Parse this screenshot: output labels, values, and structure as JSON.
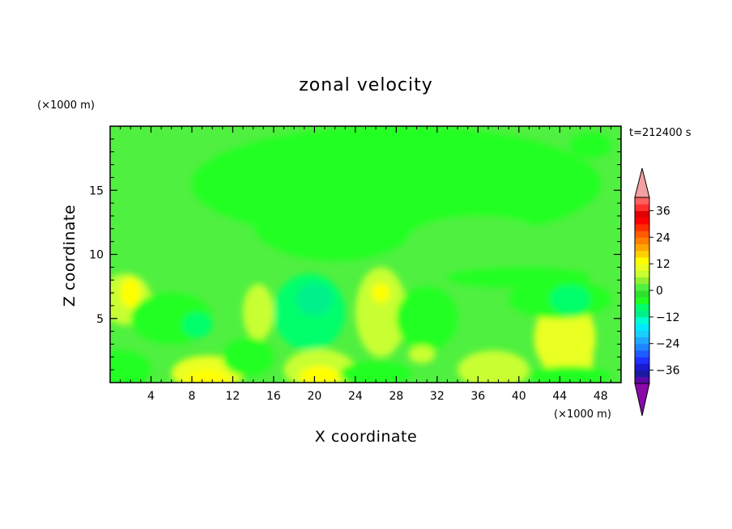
{
  "chart_data": {
    "type": "heatmap",
    "title": "zonal velocity",
    "xlabel": "X coordinate",
    "ylabel": "Z coordinate",
    "x_unit": "(×1000 m)",
    "y_unit": "(×1000 m)",
    "time_label": "t=212400 s",
    "xlim": [
      0,
      50
    ],
    "ylim": [
      0,
      20
    ],
    "x_ticks": [
      4,
      8,
      12,
      16,
      20,
      24,
      28,
      32,
      36,
      40,
      44,
      48
    ],
    "y_ticks": [
      5,
      10,
      15
    ],
    "colorbar": {
      "levels": [
        -42,
        -39,
        -36,
        -33,
        -30,
        -27,
        -24,
        -21,
        -18,
        -15,
        -12,
        -9,
        -6,
        -3,
        0,
        3,
        6,
        9,
        12,
        15,
        18,
        21,
        24,
        27,
        30,
        33,
        36,
        39,
        42
      ],
      "colors": [
        "#5b0aa8",
        "#1a1aa0",
        "#1a1ad0",
        "#2030ff",
        "#1f5cff",
        "#1f85ff",
        "#1fa8ff",
        "#19cfff",
        "#00eaff",
        "#00ffd0",
        "#00f08c",
        "#00ff6a",
        "#20ff20",
        "#2ee02e",
        "#50f040",
        "#8ff030",
        "#c8ff30",
        "#eaff20",
        "#ffff00",
        "#ffd000",
        "#ffa500",
        "#ff8000",
        "#ff5a00",
        "#ff2c00",
        "#ff0000",
        "#e00000",
        "#ff3030",
        "#ff6060"
      ],
      "under_color": "#8a0aa8",
      "over_color": "#f5a0a0",
      "tick_labels": [
        "36",
        "24",
        "12",
        "0",
        "−12",
        "−24",
        "−36"
      ],
      "tick_values": [
        36,
        24,
        12,
        0,
        -12,
        -24,
        -36
      ]
    },
    "field_background_value": 1,
    "field_blobs": [
      {
        "x": 1.5,
        "z": 6.5,
        "rx": 2.5,
        "rz": 2.0,
        "value": 8
      },
      {
        "x": 2.0,
        "z": 7.0,
        "rx": 1.0,
        "rz": 1.2,
        "value": 12
      },
      {
        "x": 6.0,
        "z": 5.0,
        "rx": 4.0,
        "rz": 2.0,
        "value": -5
      },
      {
        "x": 8.5,
        "z": 4.5,
        "rx": 1.5,
        "rz": 1.0,
        "value": -9
      },
      {
        "x": 1.0,
        "z": 1.0,
        "rx": 3.0,
        "rz": 1.5,
        "value": -5
      },
      {
        "x": 9.5,
        "z": 0.7,
        "rx": 3.5,
        "rz": 1.4,
        "value": 9
      },
      {
        "x": 9.5,
        "z": 0.3,
        "rx": 2.0,
        "rz": 0.7,
        "value": 14
      },
      {
        "x": 14.5,
        "z": 5.5,
        "rx": 1.5,
        "rz": 2.2,
        "value": 7
      },
      {
        "x": 13.5,
        "z": 2.0,
        "rx": 2.5,
        "rz": 1.5,
        "value": -4
      },
      {
        "x": 19.5,
        "z": 5.5,
        "rx": 3.5,
        "rz": 3.0,
        "value": -7
      },
      {
        "x": 20.0,
        "z": 6.5,
        "rx": 1.8,
        "rz": 1.3,
        "value": -12
      },
      {
        "x": 20.5,
        "z": 1.0,
        "rx": 3.5,
        "rz": 1.6,
        "value": 8
      },
      {
        "x": 20.5,
        "z": 0.5,
        "rx": 2.0,
        "rz": 0.8,
        "value": 13
      },
      {
        "x": 26.5,
        "z": 5.5,
        "rx": 2.5,
        "rz": 3.5,
        "value": 8
      },
      {
        "x": 26.5,
        "z": 7.0,
        "rx": 0.9,
        "rz": 0.8,
        "value": 13
      },
      {
        "x": 26.0,
        "z": 0.7,
        "rx": 3.5,
        "rz": 1.0,
        "value": -5
      },
      {
        "x": 31.0,
        "z": 5.0,
        "rx": 3.0,
        "rz": 2.5,
        "value": -4
      },
      {
        "x": 30.5,
        "z": 2.2,
        "rx": 1.3,
        "rz": 0.7,
        "value": 8
      },
      {
        "x": 37.5,
        "z": 1.0,
        "rx": 3.5,
        "rz": 1.5,
        "value": 7
      },
      {
        "x": 44.5,
        "z": 3.5,
        "rx": 3.0,
        "rz": 3.0,
        "value": 9
      },
      {
        "x": 45.5,
        "z": 2.0,
        "rx": 1.8,
        "rz": 1.6,
        "value": 11
      },
      {
        "x": 44.0,
        "z": 6.5,
        "rx": 5.0,
        "rz": 1.5,
        "value": -5
      },
      {
        "x": 45.0,
        "z": 6.5,
        "rx": 2.0,
        "rz": 1.2,
        "value": -8
      },
      {
        "x": 45.0,
        "z": 0.5,
        "rx": 4.0,
        "rz": 0.8,
        "value": -4
      },
      {
        "x": 40.0,
        "z": 8.2,
        "rx": 7.0,
        "rz": 0.8,
        "value": -5
      },
      {
        "x": 28.0,
        "z": 15.5,
        "rx": 20.0,
        "rz": 4.5,
        "value": -4
      },
      {
        "x": 22.0,
        "z": 12.5,
        "rx": 8.0,
        "rz": 3.0,
        "value": -4
      },
      {
        "x": 47.0,
        "z": 18.5,
        "rx": 2.0,
        "rz": 1.0,
        "value": -4
      },
      {
        "x": 36.0,
        "z": 11.0,
        "rx": 7.0,
        "rz": 2.0,
        "value": 2
      }
    ]
  }
}
